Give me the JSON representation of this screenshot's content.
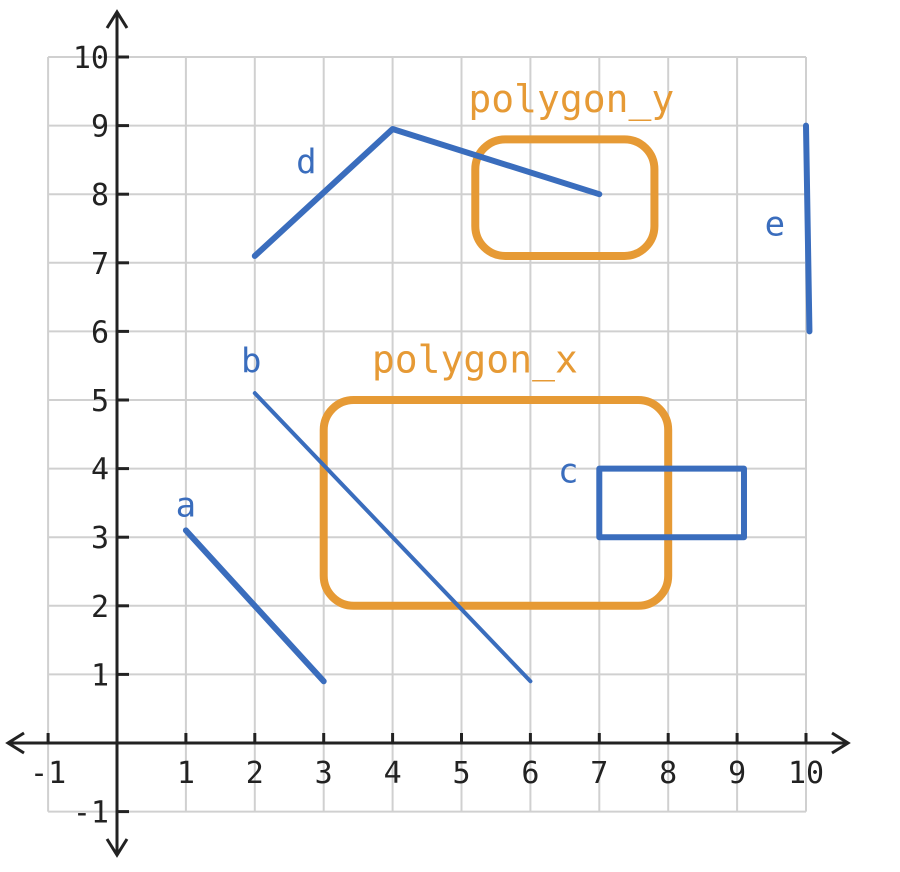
{
  "axes": {
    "x_range": [
      -1,
      10
    ],
    "y_range": [
      -1,
      10
    ],
    "grid": true,
    "x_ticks": [
      "-1",
      "1",
      "2",
      "3",
      "4",
      "5",
      "6",
      "7",
      "8",
      "9",
      "10"
    ],
    "y_ticks": [
      "-1",
      "1",
      "2",
      "3",
      "4",
      "5",
      "6",
      "7",
      "8",
      "9",
      "10"
    ]
  },
  "colors": {
    "segments": "#3a6dbd",
    "polygons": "#e69a35",
    "grid": "#d0d0d0",
    "axis": "#222222"
  },
  "segments": [
    {
      "label": "a",
      "points": [
        [
          1,
          3.1
        ],
        [
          3,
          0.9
        ]
      ],
      "label_at": [
        0.85,
        3.3
      ]
    },
    {
      "label": "b",
      "points": [
        [
          2,
          5.1
        ],
        [
          6,
          0.9
        ]
      ],
      "label_at": [
        1.8,
        5.4
      ]
    },
    {
      "label": "d",
      "points": [
        [
          2,
          7.1
        ],
        [
          4,
          8.95
        ],
        [
          7,
          8
        ]
      ],
      "label_at": [
        2.6,
        8.3
      ]
    },
    {
      "label": "e",
      "points": [
        [
          10,
          9
        ],
        [
          10.05,
          6
        ]
      ],
      "label_at": [
        9.4,
        7.4
      ]
    },
    {
      "label": "c",
      "points": [
        [
          7,
          4
        ],
        [
          9.1,
          4
        ],
        [
          9.1,
          3
        ],
        [
          7,
          3
        ],
        [
          7,
          4
        ]
      ],
      "label_at": [
        6.4,
        3.8
      ]
    }
  ],
  "polygons": [
    {
      "label": "polygon_x",
      "x": [
        3,
        8
      ],
      "y": [
        2,
        5
      ],
      "label_at": [
        3.7,
        5.4
      ]
    },
    {
      "label": "polygon_y",
      "x": [
        5.2,
        7.8
      ],
      "y": [
        7.1,
        8.8
      ],
      "label_at": [
        5.1,
        9.2
      ]
    }
  ]
}
